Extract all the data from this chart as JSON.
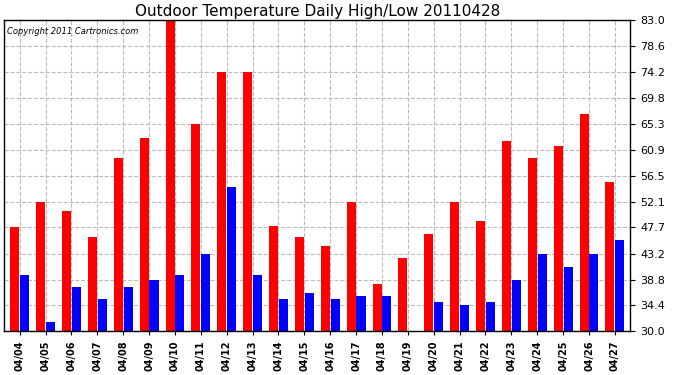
{
  "title": "Outdoor Temperature Daily High/Low 20110428",
  "copyright": "Copyright 2011 Cartronics.com",
  "dates": [
    "04/04",
    "04/05",
    "04/06",
    "04/07",
    "04/08",
    "04/09",
    "04/10",
    "04/11",
    "04/12",
    "04/13",
    "04/14",
    "04/15",
    "04/16",
    "04/17",
    "04/18",
    "04/19",
    "04/20",
    "04/21",
    "04/22",
    "04/23",
    "04/24",
    "04/25",
    "04/26",
    "04/27"
  ],
  "highs": [
    47.7,
    52.1,
    50.5,
    46.0,
    59.5,
    63.0,
    83.0,
    65.3,
    74.2,
    74.2,
    48.0,
    46.0,
    44.5,
    52.1,
    38.0,
    42.5,
    46.5,
    52.1,
    48.8,
    62.5,
    59.5,
    61.5,
    67.0,
    55.5
  ],
  "lows": [
    39.5,
    31.5,
    37.5,
    35.5,
    37.5,
    38.8,
    39.5,
    43.2,
    54.5,
    39.5,
    35.5,
    36.5,
    35.5,
    36.0,
    36.0,
    30.0,
    35.0,
    34.5,
    35.0,
    38.8,
    43.2,
    41.0,
    43.2,
    45.5
  ],
  "high_color": "#ff0000",
  "low_color": "#0000ff",
  "bg_color": "#ffffff",
  "grid_color": "#b0b0b0",
  "ymin": 30.0,
  "ymax": 83.0,
  "yticks": [
    30.0,
    34.4,
    38.8,
    43.2,
    47.7,
    52.1,
    56.5,
    60.9,
    65.3,
    69.8,
    74.2,
    78.6,
    83.0
  ]
}
